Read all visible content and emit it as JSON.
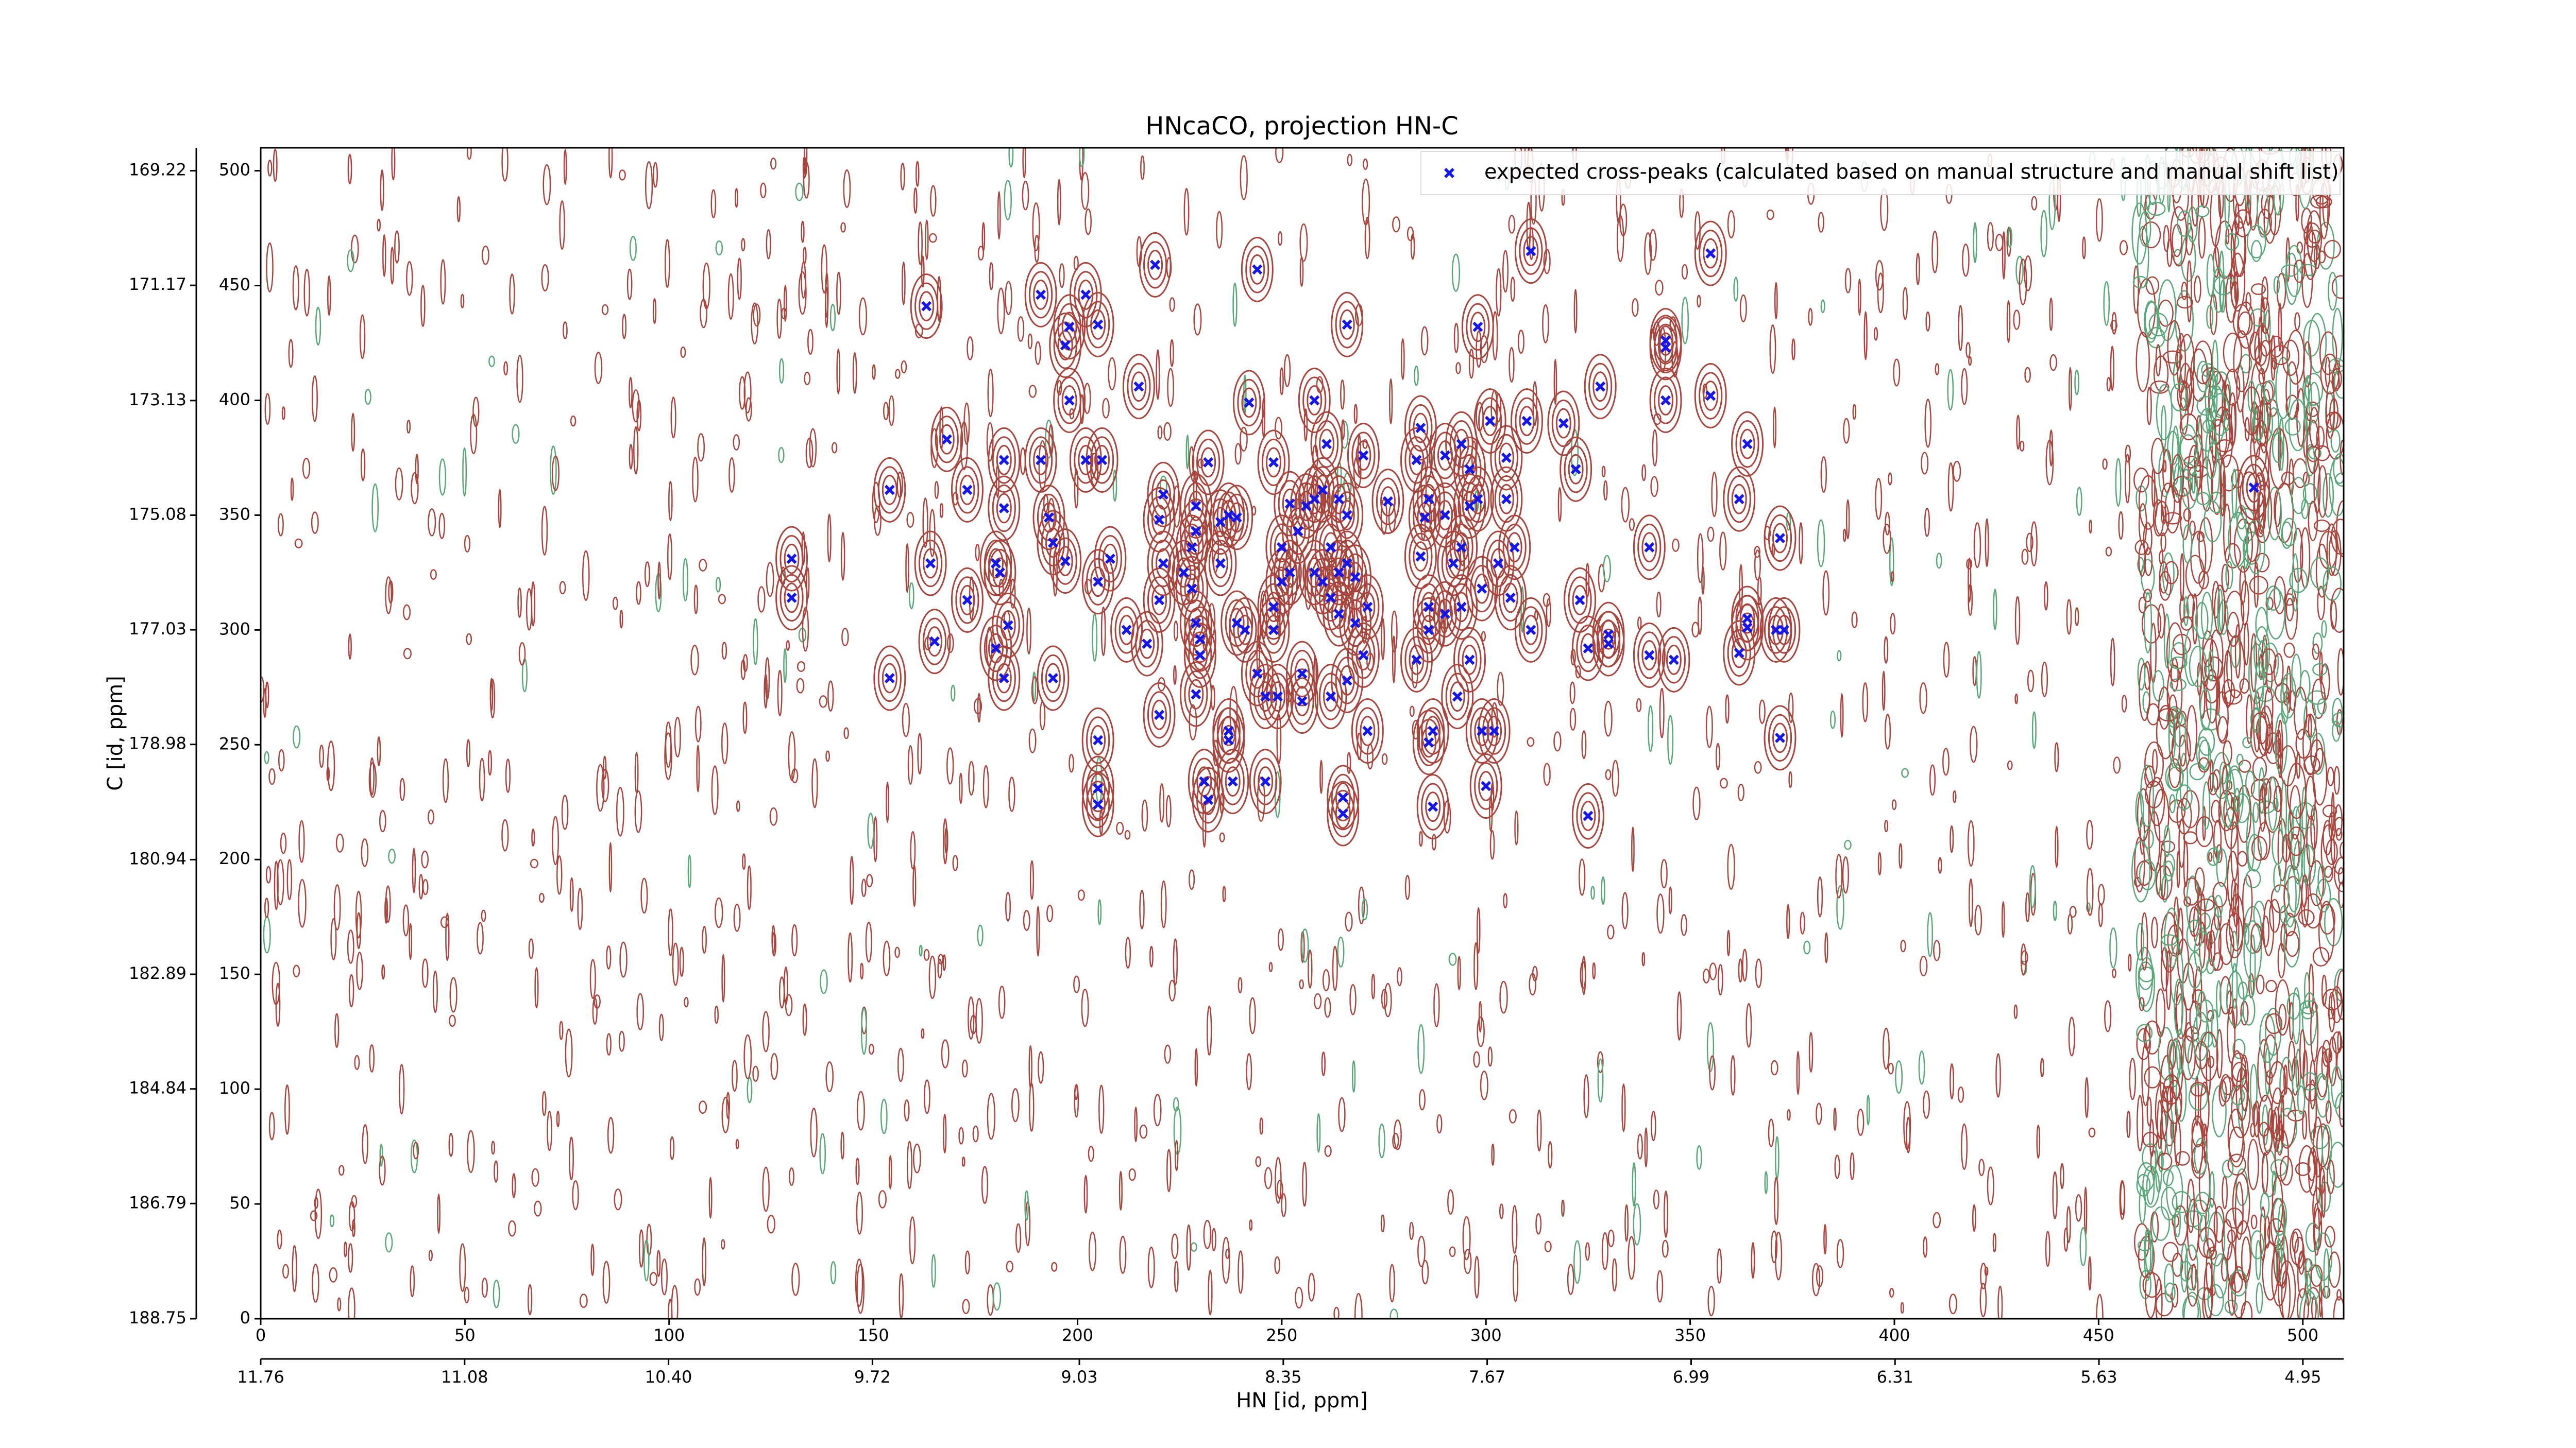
{
  "chart_data": {
    "type": "scatter",
    "title": "HNcaCO, projection HN-C",
    "xlabel": "HN [id, ppm]",
    "ylabel": "C [id, ppm]",
    "legend": "upper right",
    "x": [
      163,
      168,
      154,
      130,
      130,
      154,
      165,
      164,
      173,
      173,
      180,
      182,
      191,
      191,
      202,
      198,
      197,
      198,
      205,
      202,
      206,
      215,
      219,
      244,
      232,
      242,
      258,
      261,
      270,
      266,
      248,
      252,
      221,
      220,
      221,
      220,
      217,
      212,
      208,
      197,
      194,
      205,
      193,
      182,
      181,
      180,
      183,
      194,
      182,
      205,
      205,
      205,
      220,
      229,
      230,
      230,
      229,
      228,
      226,
      228,
      229,
      229,
      235,
      237,
      239,
      235,
      239,
      241,
      244,
      246,
      248,
      248,
      250,
      252,
      250,
      254,
      256,
      258,
      260,
      264,
      266,
      262,
      258,
      260,
      264,
      266,
      268,
      262,
      264,
      268,
      271,
      270,
      266,
      262,
      271,
      255,
      249,
      237,
      237,
      238,
      231,
      232,
      246,
      265,
      265,
      255,
      276,
      283,
      284,
      290,
      294,
      296,
      286,
      285,
      290,
      296,
      298,
      294,
      292,
      284,
      286,
      290,
      294,
      299,
      303,
      286,
      283,
      296,
      293,
      287,
      286,
      299,
      302,
      300,
      287,
      298,
      301,
      310,
      319,
      305,
      305,
      307,
      306,
      311,
      322,
      330,
      330,
      325,
      323,
      328,
      325,
      340,
      340,
      346,
      344,
      344,
      344,
      355,
      355,
      311,
      364,
      362,
      364,
      364,
      372,
      371,
      373,
      372,
      488,
      362
    ],
    "series": [
      {
        "name": "expected cross-peaks (calculated based on manual structure and manual shift list)",
        "color": "#1515f0",
        "values": [
          441,
          383,
          361,
          331,
          314,
          279,
          295,
          329,
          361,
          313,
          329,
          374,
          446,
          374,
          446,
          432,
          424,
          400,
          433,
          374,
          374,
          406,
          459,
          457,
          373,
          399,
          400,
          381,
          376,
          433,
          373,
          355,
          359,
          348,
          329,
          313,
          294,
          300,
          331,
          330,
          338,
          321,
          349,
          353,
          325,
          292,
          302,
          279,
          279,
          252,
          231,
          224,
          263,
          272,
          289,
          296,
          303,
          318,
          325,
          336,
          343,
          354,
          347,
          350,
          349,
          329,
          303,
          300,
          281,
          271,
          300,
          310,
          321,
          325,
          336,
          343,
          354,
          357,
          361,
          357,
          350,
          336,
          325,
          321,
          325,
          329,
          323,
          314,
          307,
          303,
          310,
          289,
          278,
          271,
          256,
          281,
          271,
          256,
          252,
          234,
          234,
          226,
          234,
          220,
          227,
          269,
          356,
          374,
          388,
          376,
          381,
          370,
          357,
          349,
          350,
          354,
          357,
          336,
          329,
          332,
          310,
          307,
          310,
          318,
          329,
          300,
          287,
          287,
          271,
          256,
          251,
          256,
          256,
          232,
          223,
          432,
          391,
          391,
          390,
          375,
          357,
          336,
          314,
          300,
          370,
          298,
          294,
          292,
          313,
          406,
          219,
          336,
          289,
          287,
          400,
          426,
          423,
          402,
          464,
          465,
          381,
          357,
          301,
          305,
          340,
          300,
          300,
          253,
          362,
          290
        ]
      }
    ],
    "xlim": [
      0,
      510
    ],
    "xticks": [
      0,
      50,
      100,
      150,
      200,
      250,
      300,
      350,
      400,
      450,
      500
    ],
    "ylim": [
      0,
      510
    ],
    "yticks": [
      0,
      50,
      100,
      150,
      200,
      250,
      300,
      350,
      400,
      450,
      500
    ],
    "x2lim": [
      11.76,
      4.814
    ],
    "x2ticks": [
      11.76,
      11.08,
      {
        "value": 10.4,
        "label": "10.40"
      },
      9.72,
      9.03,
      8.35,
      7.67,
      6.99,
      6.31,
      5.63,
      4.95
    ],
    "y2lim": [
      188.75,
      168.83
    ],
    "y2ticks": [
      169.22,
      171.17,
      173.13,
      175.08,
      177.03,
      178.98,
      180.94,
      182.89,
      184.84,
      186.79,
      188.75
    ]
  }
}
